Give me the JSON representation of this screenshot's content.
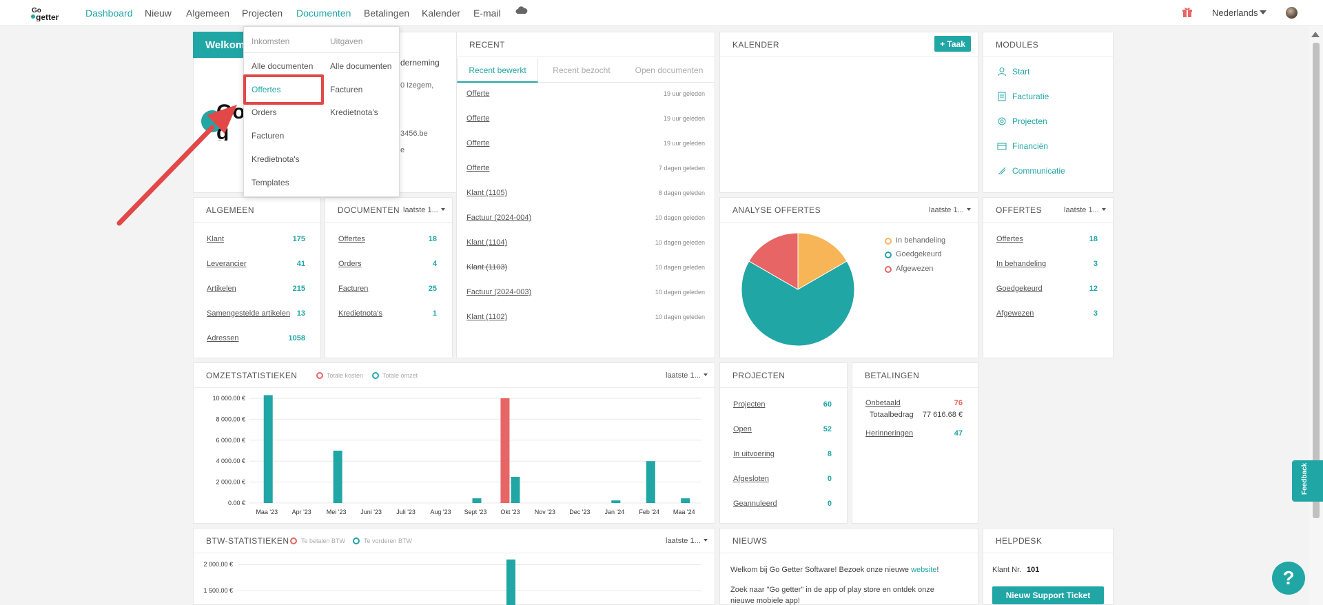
{
  "nav": {
    "items": [
      "Dashboard",
      "Nieuw",
      "Algemeen",
      "Projecten",
      "Documenten",
      "Betalingen",
      "Kalender",
      "E-mail"
    ],
    "language": "Nederlands"
  },
  "dropdown": {
    "col1_head": "Inkomsten",
    "col2_head": "Uitgaven",
    "col1": [
      "Alle documenten",
      "Offertes",
      "Orders",
      "Facturen",
      "Kredietnota's",
      "Templates"
    ],
    "col2": [
      "Alle documenten",
      "Facturen",
      "Kredietnota's"
    ]
  },
  "welcome": {
    "title": "Welkom",
    "line1": "derneming",
    "line2": "0 Izegem,",
    "line3": "3456.be",
    "line4": "e"
  },
  "recent": {
    "title": "RECENT",
    "tabs": [
      "Recent bewerkt",
      "Recent bezocht",
      "Open documenten"
    ],
    "items": [
      {
        "label": "Offerte",
        "time": "19 uur geleden"
      },
      {
        "label": "Offerte",
        "time": "19 uur geleden"
      },
      {
        "label": "Offerte",
        "time": "19 uur geleden"
      },
      {
        "label": "Offerte",
        "time": "7 dagen geleden"
      },
      {
        "label": "Klant (1105)",
        "time": "8 dagen geleden"
      },
      {
        "label": "Factuur (2024-004)",
        "time": "10 dagen geleden"
      },
      {
        "label": "Klant (1104)",
        "time": "10 dagen geleden"
      },
      {
        "label": "Klant (1103)",
        "time": "10 dagen geleden"
      },
      {
        "label": "Factuur (2024-003)",
        "time": "10 dagen geleden"
      },
      {
        "label": "Klant (1102)",
        "time": "10 dagen geleden"
      }
    ]
  },
  "kalender": {
    "title": "KALENDER",
    "button": "+ Taak"
  },
  "modules": {
    "title": "MODULES",
    "items": [
      "Start",
      "Facturatie",
      "Projecten",
      "Financiën",
      "Communicatie"
    ]
  },
  "algemeen": {
    "title": "ALGEMEEN",
    "rows": [
      {
        "label": "Klant",
        "value": "175"
      },
      {
        "label": "Leverancier",
        "value": "41"
      },
      {
        "label": "Artikelen",
        "value": "215"
      },
      {
        "label": "Samengestelde artikelen",
        "value": "13"
      },
      {
        "label": "Adressen",
        "value": "1058"
      }
    ]
  },
  "documenten": {
    "title": "DOCUMENTEN",
    "period": "laatste 1...",
    "rows": [
      {
        "label": "Offertes",
        "value": "18"
      },
      {
        "label": "Orders",
        "value": "4"
      },
      {
        "label": "Facturen",
        "value": "25"
      },
      {
        "label": "Kredietnota's",
        "value": "1"
      }
    ]
  },
  "analyse": {
    "title": "ANALYSE OFFERTES",
    "period": "laatste 1...",
    "legend": [
      "In behandeling",
      "Goedgekeurd",
      "Afgewezen"
    ]
  },
  "offertes": {
    "title": "OFFERTES",
    "period": "laatste 1...",
    "rows": [
      {
        "label": "Offertes",
        "value": "18"
      },
      {
        "label": "In behandeling",
        "value": "3"
      },
      {
        "label": "Goedgekeurd",
        "value": "12"
      },
      {
        "label": "Afgewezen",
        "value": "3"
      }
    ]
  },
  "omzet": {
    "title": "OMZETSTATISTIEKEN",
    "period": "laatste 1...",
    "legend": [
      "Totale kosten",
      "Totale omzet"
    ]
  },
  "projecten": {
    "title": "PROJECTEN",
    "rows": [
      {
        "label": "Projecten",
        "value": "60"
      },
      {
        "label": "Open",
        "value": "52"
      },
      {
        "label": "In uitvoering",
        "value": "8"
      },
      {
        "label": "Afgesloten",
        "value": "0"
      },
      {
        "label": "Geannuleerd",
        "value": "0"
      }
    ]
  },
  "betalingen": {
    "title": "BETALINGEN",
    "onbetaald_label": "Onbetaald",
    "onbetaald_value": "76",
    "totaal_label": "Totaalbedrag",
    "totaal_value": "77 616.68 €",
    "herinneringen_label": "Herinneringen",
    "herinneringen_value": "47"
  },
  "btw": {
    "title": "BTW-STATISTIEKEN",
    "period": "laatste 1...",
    "legend": [
      "Te betalen BTW",
      "Te vorderen BTW"
    ],
    "yticks": [
      "2 000.00 €",
      "1 500.00 €"
    ]
  },
  "nieuws": {
    "title": "NIEUWS",
    "line1_pre": "Welkom bij Go Getter Software! Bezoek onze nieuwe ",
    "line1_link": "website",
    "line1_post": "!",
    "line2": "Zoek naar \"Go getter\" in de app of play store en ontdek onze nieuwe mobiele app!"
  },
  "helpdesk": {
    "title": "HELPDESK",
    "klant_label": "Klant Nr.",
    "klant_value": "101",
    "button": "Nieuw Support Ticket"
  },
  "feedback": "Feedback",
  "help_fab": "?",
  "colors": {
    "accent": "#21a6a6",
    "red": "#e86565",
    "orange": "#f7b557",
    "highlight": "#e24848"
  },
  "chart_data": [
    {
      "type": "bar",
      "title": "OMZETSTATISTIEKEN",
      "categories": [
        "Maa '23",
        "Apr '23",
        "Mei '23",
        "Juni '23",
        "Juli '23",
        "Aug '23",
        "Sept '23",
        "Okt '23",
        "Nov '23",
        "Dec '23",
        "Jan '24",
        "Feb '24",
        "Maa '24"
      ],
      "yticks": [
        "10 000.00 €",
        "8 000.00 €",
        "6 000.00 €",
        "4 000.00 €",
        "2 000.00 €",
        "0.00 €"
      ],
      "ylim": [
        0,
        10000
      ],
      "series": [
        {
          "name": "Totale kosten",
          "color": "#e86565",
          "values": [
            0,
            0,
            0,
            0,
            0,
            0,
            0,
            10000,
            0,
            0,
            0,
            0,
            0
          ]
        },
        {
          "name": "Totale omzet",
          "color": "#21a6a6",
          "values": [
            10300,
            0,
            5000,
            0,
            0,
            0,
            450,
            2500,
            0,
            0,
            250,
            4000,
            450
          ]
        }
      ]
    },
    {
      "type": "pie",
      "title": "ANALYSE OFFERTES",
      "categories": [
        "In behandeling",
        "Goedgekeurd",
        "Afgewezen"
      ],
      "values": [
        3,
        12,
        3
      ],
      "colors": [
        "#f7b557",
        "#21a6a6",
        "#e86565"
      ]
    }
  ]
}
